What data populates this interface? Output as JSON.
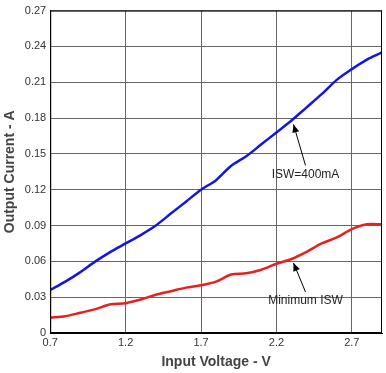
{
  "chart_data": {
    "type": "line",
    "x_label": "Input Voltage - V",
    "y_label": "Output Current - A",
    "x": [
      0.7,
      0.8,
      0.9,
      1.0,
      1.1,
      1.2,
      1.3,
      1.4,
      1.5,
      1.6,
      1.7,
      1.8,
      1.9,
      2.0,
      2.1,
      2.2,
      2.3,
      2.4,
      2.5,
      2.6,
      2.7,
      2.8,
      2.9
    ],
    "series": [
      {
        "name": "ISW=400mA",
        "color": "#1414e6",
        "values": [
          0.036,
          0.043,
          0.051,
          0.06,
          0.068,
          0.075,
          0.082,
          0.09,
          0.1,
          0.11,
          0.12,
          0.128,
          0.14,
          0.148,
          0.158,
          0.168,
          0.178,
          0.189,
          0.2,
          0.212,
          0.221,
          0.229,
          0.235
        ]
      },
      {
        "name": "Minimum ISW",
        "color": "#e8201f",
        "values": [
          0.013,
          0.014,
          0.017,
          0.02,
          0.024,
          0.025,
          0.028,
          0.032,
          0.035,
          0.038,
          0.04,
          0.043,
          0.049,
          0.05,
          0.053,
          0.058,
          0.062,
          0.068,
          0.075,
          0.08,
          0.087,
          0.091,
          0.091
        ]
      }
    ],
    "xlim": [
      0.7,
      2.9
    ],
    "xticks": [
      0.7,
      1.2,
      1.7,
      2.2,
      2.7
    ],
    "ylim": [
      0,
      0.27
    ],
    "yticks": [
      0,
      0.03,
      0.06,
      0.09,
      0.12,
      0.15,
      0.18,
      0.21,
      0.24,
      0.27
    ],
    "grid": true
  }
}
